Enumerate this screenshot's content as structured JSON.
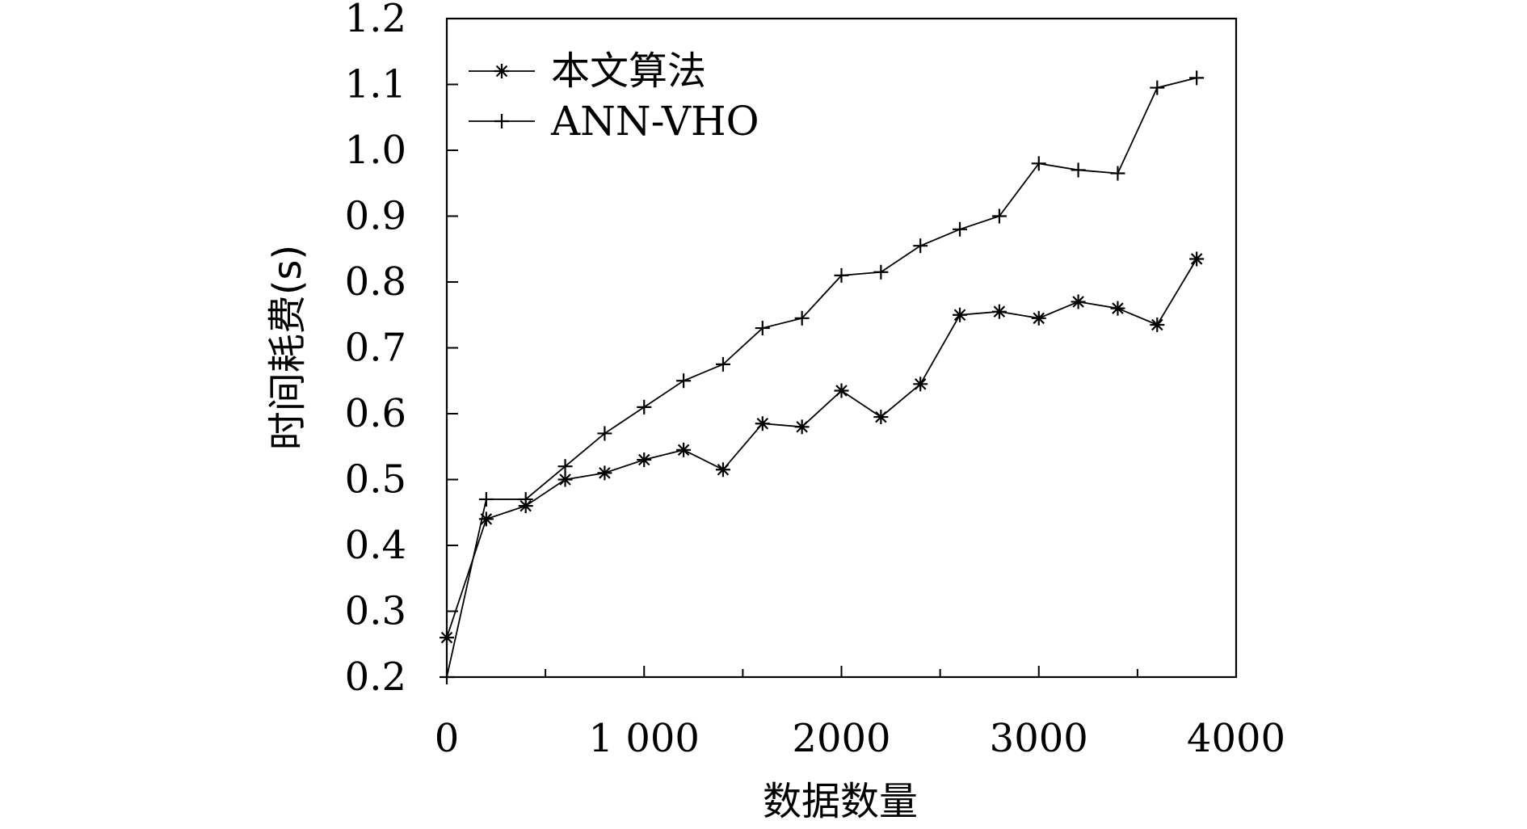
{
  "chart_data": {
    "type": "line",
    "title": "",
    "xlabel": "数据数量",
    "ylabel": "时间耗费(s)",
    "xlim": [
      0,
      4000
    ],
    "ylim": [
      0.2,
      1.2
    ],
    "x_ticks": [
      0,
      1000,
      2000,
      3000,
      4000
    ],
    "x_tick_labels": [
      "0",
      "1 000",
      "2000",
      "3000",
      "4000"
    ],
    "y_ticks": [
      0.2,
      0.3,
      0.4,
      0.5,
      0.6,
      0.7,
      0.8,
      0.9,
      1.0,
      1.1,
      1.2
    ],
    "y_tick_labels": [
      "0.2",
      "0.3",
      "0.4",
      "0.5",
      "0.6",
      "0.7",
      "0.8",
      "0.9",
      "1.0",
      "1.1",
      "1.2"
    ],
    "grid": false,
    "legend_position": "top-left",
    "x": [
      0,
      200,
      400,
      600,
      800,
      1000,
      1200,
      1400,
      1600,
      1800,
      2000,
      2200,
      2400,
      2600,
      2800,
      3000,
      3200,
      3400,
      3600,
      3800
    ],
    "series": [
      {
        "name": "本文算法",
        "marker": "asterisk",
        "color": "#000000",
        "values": [
          0.26,
          0.44,
          0.46,
          0.5,
          0.51,
          0.53,
          0.545,
          0.515,
          0.585,
          0.58,
          0.635,
          0.595,
          0.645,
          0.75,
          0.755,
          0.745,
          0.77,
          0.76,
          0.735,
          0.835
        ]
      },
      {
        "name": "ANN-VHO",
        "marker": "plus",
        "color": "#000000",
        "values": [
          0.2,
          0.47,
          0.47,
          0.52,
          0.57,
          0.61,
          0.65,
          0.675,
          0.73,
          0.745,
          0.81,
          0.815,
          0.855,
          0.88,
          0.9,
          0.98,
          0.97,
          0.965,
          1.095,
          1.11
        ]
      }
    ]
  }
}
